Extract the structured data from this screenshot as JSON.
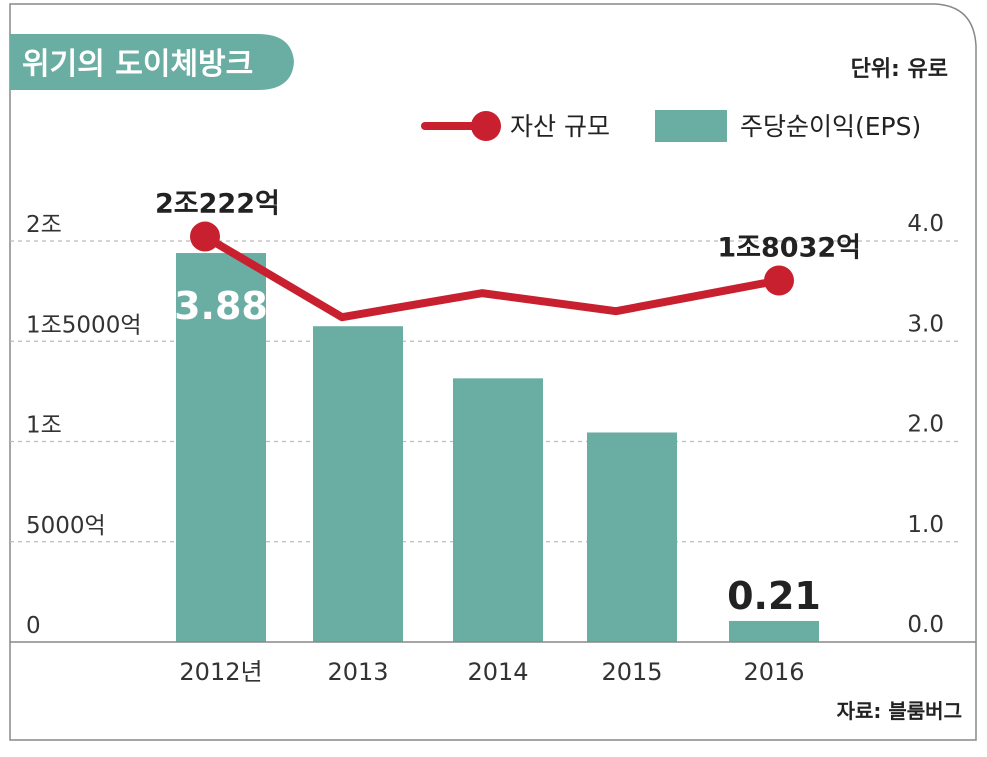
{
  "title": "위기의 도이체방크",
  "unit": "단위: 유로",
  "source": "자료: 블룸버그",
  "colors": {
    "bar": "#6aaea3",
    "line": "#c8202f",
    "title_bg": "#6aaea3",
    "grid": "#bbbbbb",
    "frame": "#888888"
  },
  "legend": {
    "line_label": "자산 규모",
    "bar_label": "주당순이익(EPS)"
  },
  "chart_data": {
    "type": "bar+line",
    "categories": [
      "2012년",
      "2013",
      "2014",
      "2015",
      "2016"
    ],
    "series": [
      {
        "name": "주당순이익(EPS)",
        "kind": "bar",
        "axis": "right",
        "values": [
          3.88,
          3.15,
          2.63,
          2.09,
          0.21
        ],
        "data_labels": [
          "3.88",
          "",
          "",
          "",
          "0.21"
        ]
      },
      {
        "name": "자산 규모",
        "kind": "line",
        "axis": "left",
        "unit": "억 유로",
        "values": [
          20222,
          16200,
          17400,
          16500,
          18032
        ],
        "data_labels": [
          "2조222억",
          "",
          "",
          "",
          "1조8032억"
        ]
      }
    ],
    "left_axis": {
      "ylim": [
        0,
        20000
      ],
      "ticks": [
        0,
        5000,
        10000,
        15000,
        20000
      ],
      "tick_labels": [
        "0",
        "5000억",
        "1조",
        "1조5000억",
        "2조"
      ]
    },
    "right_axis": {
      "ylim": [
        0,
        4
      ],
      "ticks": [
        0,
        1,
        2,
        3,
        4
      ],
      "tick_labels": [
        "0.0",
        "1.0",
        "2.0",
        "3.0",
        "4.0"
      ]
    },
    "grid": true
  }
}
